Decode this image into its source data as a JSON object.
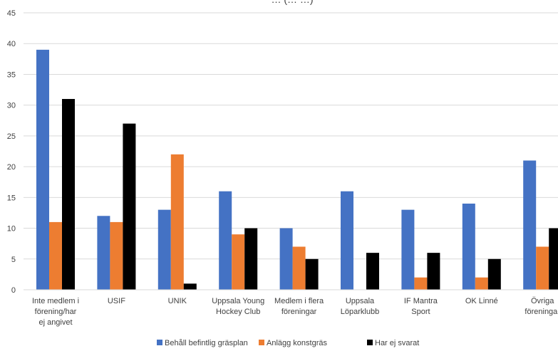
{
  "chart_data": {
    "type": "bar",
    "title": "… (… …)",
    "ylim": [
      0,
      45
    ],
    "yticks": [
      0,
      5,
      10,
      15,
      20,
      25,
      30,
      35,
      40,
      45
    ],
    "grid": true,
    "legend_position": "bottom",
    "categories": [
      [
        "Inte medlem i",
        "förening/har",
        "ej angivet"
      ],
      [
        "USIF"
      ],
      [
        "UNIK"
      ],
      [
        "Uppsala Young",
        "Hockey Club"
      ],
      [
        "Medlem i flera",
        "föreningar"
      ],
      [
        "Uppsala",
        "Löparklubb"
      ],
      [
        "IF Mantra",
        "Sport"
      ],
      [
        "OK Linné"
      ],
      [
        "Övriga",
        "föreningar"
      ]
    ],
    "series": [
      {
        "name": "Behåll befintlig gräsplan",
        "color": "#4472C4",
        "values": [
          39,
          12,
          13,
          16,
          10,
          16,
          13,
          14,
          21
        ]
      },
      {
        "name": "Anlägg konstgräs",
        "color": "#ED7D31",
        "values": [
          11,
          11,
          22,
          9,
          7,
          0,
          2,
          2,
          7
        ]
      },
      {
        "name": "Har ej svarat",
        "color": "#000000",
        "values": [
          31,
          27,
          1,
          10,
          5,
          6,
          6,
          5,
          10
        ]
      }
    ]
  }
}
